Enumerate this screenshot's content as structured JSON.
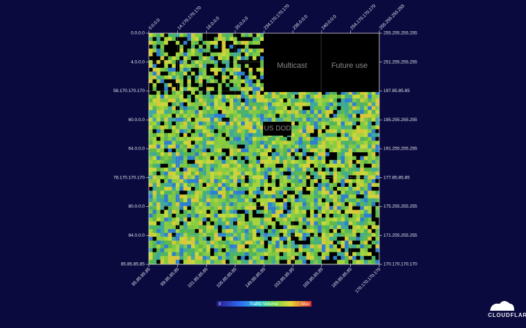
{
  "top_labels": [
    "0.0.0.0",
    "14.170.170.170",
    "16.0.0.0",
    "20.0.0.0",
    "234.170.170.170",
    "236.0.0.0",
    "240.0.0.0",
    "254.170.170.170",
    "255.255.255.255"
  ],
  "left_labels": [
    "0.0.0.0",
    "4.0.0.0",
    "58.170.170.170",
    "60.0.0.0",
    "64.0.0.0",
    "78.170.170.170",
    "80.0.0.0",
    "84.0.0.0",
    "85.85.85.85"
  ],
  "right_labels": [
    "255.255.255.255",
    "251.255.255.255",
    "197.85.85.85",
    "195.255.255.255",
    "191.255.255.255",
    "177.85.85.85",
    "175.255.255.255",
    "171.255.255.255",
    "170.170.170.170"
  ],
  "bottom_labels": [
    "85.85.85.85",
    "89.85.85.85",
    "101.85.85.85",
    "105.85.85.85",
    "149.85.85.85",
    "153.85.85.85",
    "165.85.85.85",
    "169.85.85.85",
    "170.170.170.170"
  ],
  "regions": {
    "multicast": "Multicast",
    "future_use": "Future use",
    "us_dod": "US DOD"
  },
  "legend": {
    "min": "0",
    "title": "Traffic Volume",
    "max": "Max"
  },
  "logo": "CLOUDFLARE"
}
